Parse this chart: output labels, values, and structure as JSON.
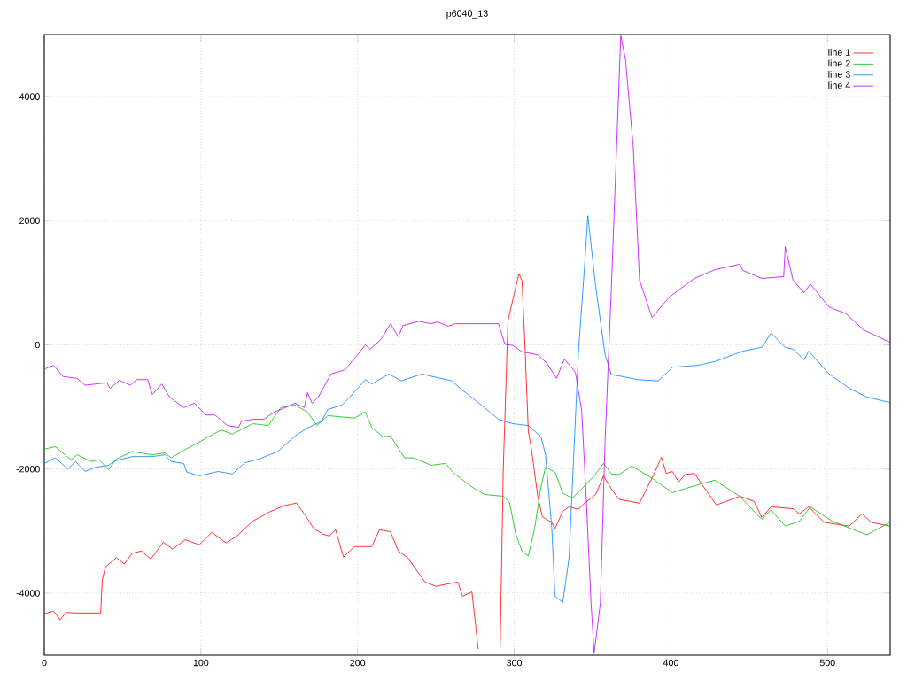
{
  "chart_data": {
    "type": "line",
    "title": "p6040_13",
    "xlim": [
      0,
      540
    ],
    "ylim": [
      -5000,
      5000
    ],
    "xticks": [
      0,
      100,
      200,
      300,
      400,
      500
    ],
    "yticks": [
      -4000,
      -2000,
      0,
      2000,
      4000
    ],
    "grid": true,
    "legend": "top right",
    "marker": "none",
    "line_style": "solid",
    "series": [
      {
        "name": "line 1",
        "color": "#ff0000",
        "x": [
          0,
          6,
          10,
          14,
          20,
          36,
          37,
          39,
          46,
          51,
          56,
          62,
          68,
          76,
          82,
          90,
          99,
          107,
          116,
          123,
          133,
          144,
          153,
          161,
          167,
          172,
          178,
          182,
          186,
          191,
          198,
          209,
          214,
          221,
          226,
          232,
          243,
          250,
          264,
          267,
          273,
          277,
          284,
          291,
          293,
          296,
          303,
          305,
          307,
          309,
          311,
          315,
          318,
          324,
          326,
          331,
          335,
          341,
          345,
          352,
          357,
          362,
          367,
          380,
          389,
          394,
          397,
          401,
          405,
          409,
          415,
          429,
          444,
          453,
          458,
          464,
          478,
          482,
          488,
          498,
          514,
          522,
          528,
          540
        ],
        "values": [
          -4330,
          -4290,
          -4430,
          -4310,
          -4320,
          -4320,
          -3790,
          -3580,
          -3430,
          -3530,
          -3360,
          -3320,
          -3450,
          -3180,
          -3290,
          -3140,
          -3220,
          -3020,
          -3190,
          -3080,
          -2840,
          -2690,
          -2590,
          -2550,
          -2760,
          -2960,
          -3050,
          -3080,
          -2980,
          -3420,
          -3250,
          -3250,
          -2980,
          -3010,
          -3320,
          -3430,
          -3820,
          -3890,
          -3820,
          -4050,
          -3980,
          -4900,
          null,
          -4900,
          -2010,
          390,
          1150,
          1030,
          -110,
          -1400,
          -1680,
          -2440,
          -2770,
          -2860,
          -2960,
          -2680,
          -2610,
          -2650,
          -2550,
          -2410,
          -2110,
          -2320,
          -2490,
          -2550,
          -2090,
          -1810,
          -2070,
          -2040,
          -2210,
          -2090,
          -2070,
          -2580,
          -2440,
          -2520,
          -2780,
          -2610,
          -2640,
          -2720,
          -2610,
          -2860,
          -2920,
          -2720,
          -2860,
          -2920
        ]
      },
      {
        "name": "line 2",
        "color": "#00c000",
        "x": [
          0,
          7,
          17,
          21,
          30,
          35,
          41,
          46,
          56,
          69,
          77,
          81,
          89,
          100,
          113,
          120,
          133,
          143,
          151,
          160,
          168,
          174,
          181,
          198,
          205,
          209,
          216,
          221,
          230,
          236,
          247,
          256,
          262,
          273,
          281,
          293,
          297,
          301,
          305,
          309,
          313,
          317,
          320,
          326,
          331,
          337,
          345,
          351,
          357,
          362,
          367,
          375,
          388,
          401,
          419,
          428,
          444,
          458,
          464,
          473,
          482,
          489,
          503,
          525,
          540
        ],
        "values": [
          -1680,
          -1640,
          -1850,
          -1770,
          -1880,
          -1850,
          -2010,
          -1840,
          -1720,
          -1770,
          -1740,
          -1820,
          -1700,
          -1550,
          -1370,
          -1440,
          -1270,
          -1300,
          -1010,
          -970,
          -1080,
          -1300,
          -1140,
          -1180,
          -1080,
          -1330,
          -1480,
          -1470,
          -1820,
          -1820,
          -1940,
          -1910,
          -2080,
          -2290,
          -2410,
          -2440,
          -2540,
          -3050,
          -3330,
          -3400,
          -2960,
          -2290,
          -1970,
          -2050,
          -2390,
          -2470,
          -2270,
          -2110,
          -1910,
          -2080,
          -2090,
          -1950,
          -2150,
          -2380,
          -2240,
          -2180,
          -2440,
          -2810,
          -2660,
          -2920,
          -2840,
          -2610,
          -2840,
          -3060,
          -2860
        ]
      },
      {
        "name": "line 3",
        "color": "#0080ff",
        "x": [
          0,
          7,
          15,
          20,
          26,
          33,
          41,
          45,
          56,
          69,
          77,
          81,
          89,
          91,
          99,
          111,
          120,
          128,
          137,
          149,
          160,
          168,
          177,
          181,
          190,
          194,
          205,
          209,
          220,
          228,
          241,
          260,
          267,
          281,
          290,
          299,
          309,
          317,
          320,
          324,
          326,
          331,
          335,
          338,
          341,
          345,
          347,
          352,
          358,
          362,
          367,
          379,
          392,
          401,
          417,
          428,
          446,
          458,
          464,
          473,
          478,
          485,
          488,
          501,
          514,
          525,
          540
        ],
        "values": [
          -1910,
          -1820,
          -2000,
          -1880,
          -2040,
          -1970,
          -1940,
          -1870,
          -1800,
          -1800,
          -1770,
          -1880,
          -1910,
          -2050,
          -2110,
          -2040,
          -2080,
          -1900,
          -1840,
          -1720,
          -1470,
          -1340,
          -1230,
          -1040,
          -970,
          -870,
          -560,
          -630,
          -470,
          -580,
          -470,
          -580,
          -730,
          -1010,
          -1200,
          -1270,
          -1300,
          -1480,
          -1770,
          -2960,
          -4050,
          -4150,
          -3430,
          -1770,
          -110,
          1310,
          2080,
          940,
          -160,
          -480,
          -500,
          -560,
          -580,
          -360,
          -330,
          -270,
          -100,
          -40,
          190,
          -40,
          -70,
          -240,
          -100,
          -470,
          -700,
          -840,
          -930
        ]
      },
      {
        "name": "line 4",
        "color": "#c000ff",
        "x": [
          0,
          6,
          12,
          21,
          26,
          40,
          42,
          48,
          55,
          59,
          66,
          69,
          75,
          80,
          89,
          96,
          103,
          109,
          117,
          124,
          126,
          133,
          140,
          147,
          154,
          160,
          166,
          168,
          171,
          175,
          183,
          192,
          200,
          205,
          208,
          215,
          221,
          226,
          229,
          239,
          247,
          251,
          258,
          262,
          290,
          294,
          299,
          305,
          315,
          321,
          327,
          332,
          339,
          343,
          346,
          349,
          351,
          355,
          358,
          362,
          368,
          371,
          376,
          380,
          388,
          399,
          415,
          428,
          444,
          446,
          458,
          472,
          473,
          478,
          485,
          489,
          501,
          512,
          523,
          540
        ],
        "values": [
          -390,
          -330,
          -510,
          -540,
          -650,
          -610,
          -700,
          -570,
          -650,
          -560,
          -560,
          -800,
          -630,
          -840,
          -1010,
          -940,
          -1130,
          -1130,
          -1300,
          -1330,
          -1230,
          -1200,
          -1200,
          -1080,
          -1010,
          -940,
          -1010,
          -770,
          -940,
          -840,
          -470,
          -400,
          -160,
          0,
          -70,
          90,
          340,
          130,
          310,
          380,
          340,
          370,
          300,
          340,
          340,
          10,
          -10,
          -110,
          -160,
          -300,
          -540,
          -230,
          -440,
          -1050,
          -2480,
          -4150,
          -4970,
          -4150,
          -1540,
          910,
          4980,
          4600,
          3180,
          1040,
          440,
          770,
          1070,
          1210,
          1300,
          1200,
          1070,
          1100,
          1580,
          1040,
          840,
          980,
          610,
          500,
          240,
          40
        ]
      }
    ]
  }
}
